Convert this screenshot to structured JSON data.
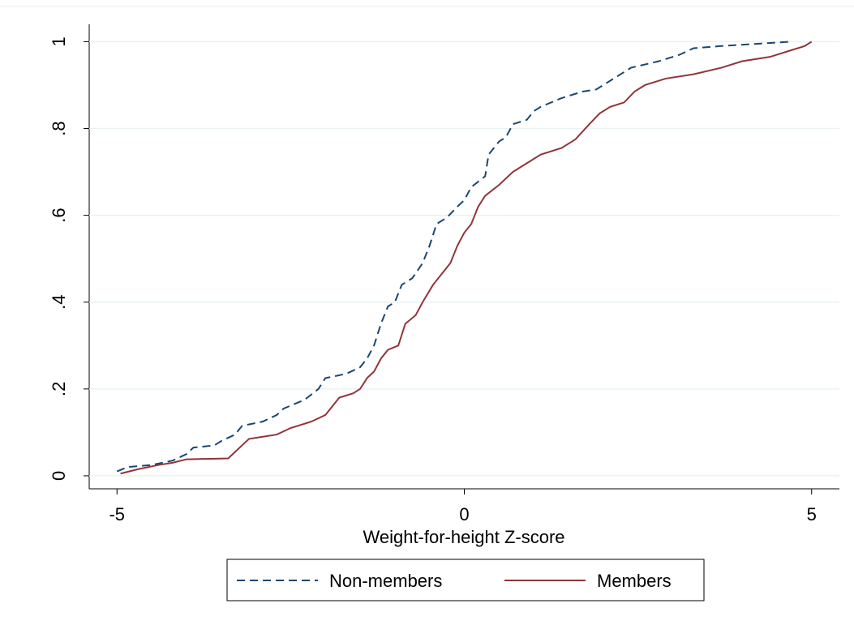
{
  "chart_data": {
    "type": "line",
    "x_label": "Weight-for-height Z-score",
    "xlim": [
      -5.4,
      5.4
    ],
    "xticks": [
      -5,
      0,
      5
    ],
    "ylim": [
      -0.03,
      1.04
    ],
    "yticks": [
      0,
      {
        "value": 0.2,
        "label": ".2"
      },
      {
        "value": 0.4,
        "label": ".4"
      },
      {
        "value": 0.6,
        "label": ".6"
      },
      {
        "value": 0.8,
        "label": ".8"
      },
      1
    ],
    "grid": true,
    "legend": "bottom",
    "series": [
      {
        "name": "Non-members",
        "color": "#1a476f",
        "dash": true,
        "x": [
          -5,
          -4.85,
          -4.5,
          -4.2,
          -4,
          -3.9,
          -3.6,
          -3.5,
          -3.3,
          -3.2,
          -2.9,
          -2.7,
          -2.6,
          -2.3,
          -2.1,
          -2,
          -1.7,
          -1.5,
          -1.4,
          -1.3,
          -1.2,
          -1.1,
          -1,
          -0.9,
          -0.75,
          -0.6,
          -0.5,
          -0.4,
          -0.25,
          -0.1,
          0,
          0.1,
          0.3,
          0.35,
          0.5,
          0.6,
          0.7,
          0.9,
          1.0,
          1.1,
          1.4,
          1.7,
          1.9,
          2.2,
          2.4,
          2.8,
          3.1,
          3.3,
          3.7,
          4.2,
          4.7
        ],
        "values": [
          0.01,
          0.02,
          0.025,
          0.035,
          0.05,
          0.065,
          0.07,
          0.08,
          0.095,
          0.115,
          0.125,
          0.14,
          0.155,
          0.175,
          0.2,
          0.225,
          0.235,
          0.25,
          0.27,
          0.3,
          0.35,
          0.39,
          0.4,
          0.44,
          0.455,
          0.49,
          0.53,
          0.58,
          0.595,
          0.62,
          0.635,
          0.665,
          0.69,
          0.74,
          0.77,
          0.78,
          0.81,
          0.82,
          0.84,
          0.85,
          0.87,
          0.885,
          0.89,
          0.92,
          0.94,
          0.955,
          0.97,
          0.985,
          0.99,
          0.995,
          1.0
        ]
      },
      {
        "name": "Members",
        "color": "#90353b",
        "dash": false,
        "x": [
          -4.95,
          -4.7,
          -4.4,
          -4.2,
          -4,
          -3.4,
          -3.3,
          -3.2,
          -3.1,
          -2.9,
          -2.7,
          -2.5,
          -2.2,
          -2,
          -1.9,
          -1.8,
          -1.6,
          -1.5,
          -1.4,
          -1.3,
          -1.2,
          -1.1,
          -0.95,
          -0.85,
          -0.7,
          -0.6,
          -0.45,
          -0.3,
          -0.2,
          -0.1,
          0,
          0.1,
          0.2,
          0.3,
          0.5,
          0.7,
          0.9,
          1.1,
          1.4,
          1.6,
          1.8,
          1.95,
          2.1,
          2.3,
          2.45,
          2.6,
          2.9,
          3.3,
          3.7,
          4.0,
          4.4,
          4.7,
          4.9,
          5.0
        ],
        "values": [
          0.005,
          0.015,
          0.025,
          0.03,
          0.038,
          0.04,
          0.055,
          0.07,
          0.085,
          0.09,
          0.095,
          0.11,
          0.125,
          0.14,
          0.16,
          0.18,
          0.19,
          0.2,
          0.225,
          0.24,
          0.27,
          0.29,
          0.3,
          0.35,
          0.37,
          0.4,
          0.44,
          0.47,
          0.49,
          0.53,
          0.56,
          0.58,
          0.62,
          0.645,
          0.67,
          0.7,
          0.72,
          0.74,
          0.755,
          0.775,
          0.81,
          0.835,
          0.85,
          0.86,
          0.885,
          0.9,
          0.915,
          0.925,
          0.94,
          0.955,
          0.965,
          0.98,
          0.99,
          1.0
        ]
      }
    ]
  }
}
